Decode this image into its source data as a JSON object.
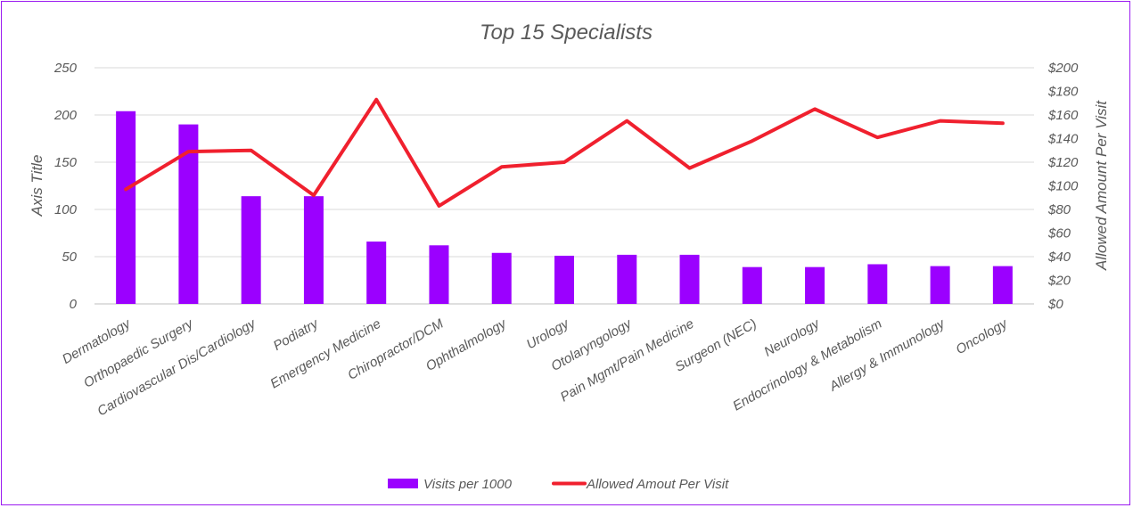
{
  "chart_data": {
    "type": "bar",
    "title": "Top 15 Specialists",
    "categories": [
      "Dermatology",
      "Orthopaedic Surgery",
      "Cardiovascular Dis/Cardiology",
      "Podiatry",
      "Emergency Medicine",
      "Chiropractor/DCM",
      "Ophthalmology",
      "Urology",
      "Otolaryngology",
      "Pain Mgmt/Pain Medicine",
      "Surgeon (NEC)",
      "Neurology",
      "Endocrinology & Metabolism",
      "Allergy & Immunology",
      "Oncology"
    ],
    "series": [
      {
        "name": "Visits per 1000",
        "type": "bar",
        "axis": "left",
        "color": "#9b00ff",
        "values": [
          204,
          190,
          114,
          114,
          66,
          62,
          54,
          51,
          52,
          52,
          39,
          39,
          42,
          40,
          40
        ]
      },
      {
        "name": "Allowed Amout Per Visit",
        "type": "line",
        "axis": "right",
        "color": "#f0202e",
        "values": [
          97,
          129,
          130,
          92,
          173,
          83,
          116,
          120,
          155,
          115,
          138,
          165,
          141,
          155,
          153
        ]
      }
    ],
    "ylabel_left": "Axis Title",
    "ylabel_right": "Allowed Amount Per Visit",
    "ylim_left": [
      0,
      250
    ],
    "ylim_right": [
      0,
      200
    ],
    "yticks_left": [
      "0",
      "50",
      "100",
      "150",
      "200",
      "250"
    ],
    "yticks_right": [
      "$0",
      "$20",
      "$40",
      "$60",
      "$80",
      "$100",
      "$120",
      "$140",
      "$160",
      "$180",
      "$200"
    ],
    "grid": true,
    "legend_position": "bottom",
    "colors": {
      "border": "#9b1bf0",
      "grid": "#d9d9d9",
      "text": "#595959"
    }
  }
}
